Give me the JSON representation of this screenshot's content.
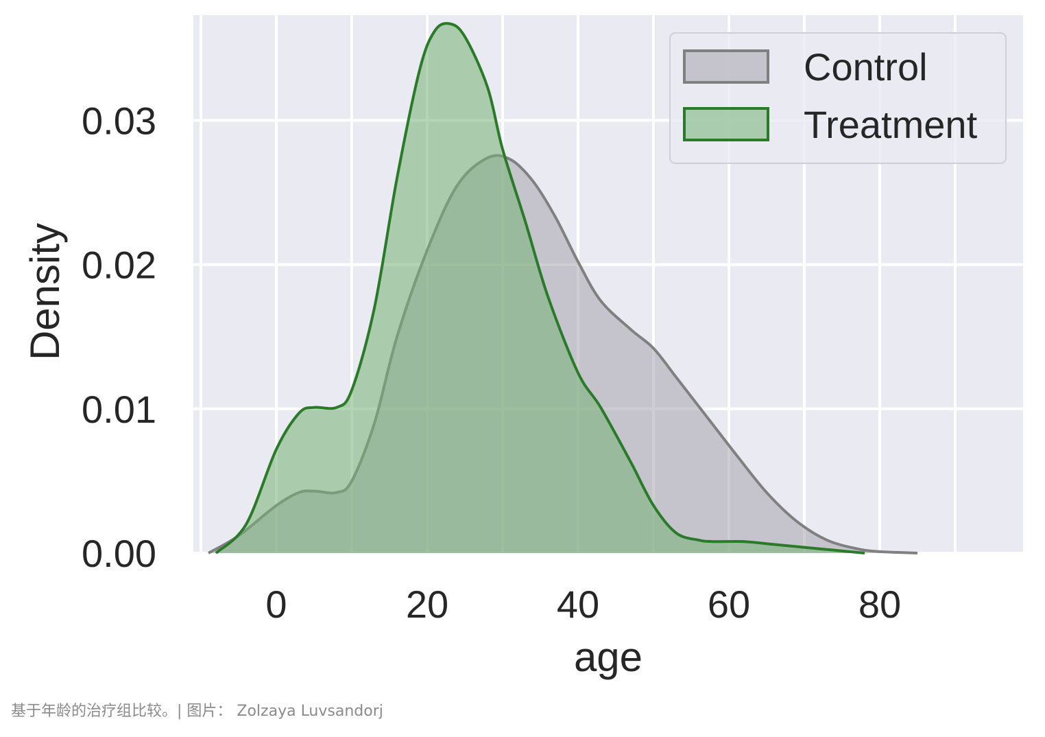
{
  "chart_data": {
    "type": "area",
    "xlabel": "age",
    "ylabel": "Density",
    "xlim": [
      -11,
      99
    ],
    "ylim": [
      0,
      0.0373
    ],
    "xticks": [
      "0",
      "20",
      "40",
      "60",
      "80"
    ],
    "xtick_values": [
      0,
      20,
      40,
      60,
      80
    ],
    "yticks": [
      "0.00",
      "0.01",
      "0.02",
      "0.03"
    ],
    "ytick_values": [
      0,
      0.01,
      0.02,
      0.03
    ],
    "grid": true,
    "legend_position": "top-right",
    "background_color": "#eaeaf2",
    "series": [
      {
        "name": "Control",
        "fill_color": "#a6a4ad",
        "line_color": "#808080",
        "x": [
          -9,
          -5,
          0,
          3,
          5,
          8,
          10,
          13,
          16,
          20,
          24,
          28,
          31,
          34,
          37,
          40,
          43,
          47,
          50,
          53,
          57,
          61,
          65,
          69,
          73,
          77,
          80,
          85
        ],
        "y": [
          0,
          0.0012,
          0.0033,
          0.0042,
          0.0043,
          0.0042,
          0.005,
          0.009,
          0.015,
          0.021,
          0.0255,
          0.0274,
          0.0273,
          0.0258,
          0.0233,
          0.0202,
          0.0175,
          0.0155,
          0.0142,
          0.0122,
          0.0095,
          0.0068,
          0.0042,
          0.0022,
          0.0009,
          0.0003,
          0.0001,
          0
        ]
      },
      {
        "name": "Treatment",
        "fill_color": "#74b274",
        "line_color": "#2a7a2a",
        "x": [
          -8,
          -4,
          0,
          3,
          5,
          8,
          10,
          13,
          16,
          19,
          21,
          23,
          25,
          28,
          30,
          33,
          36,
          40,
          43,
          47,
          50,
          53,
          56,
          58,
          62,
          66,
          70,
          74,
          78
        ],
        "y": [
          0,
          0.002,
          0.0072,
          0.0097,
          0.0101,
          0.0101,
          0.0113,
          0.017,
          0.026,
          0.0335,
          0.0362,
          0.0367,
          0.0358,
          0.0323,
          0.028,
          0.023,
          0.0178,
          0.0125,
          0.0101,
          0.0063,
          0.0033,
          0.0014,
          0.0009,
          0.0008,
          0.0008,
          0.0006,
          0.0004,
          0.0002,
          0
        ]
      }
    ]
  },
  "caption": "基于年龄的治疗组比较。| 图片： Zolzaya Luvsandorj"
}
